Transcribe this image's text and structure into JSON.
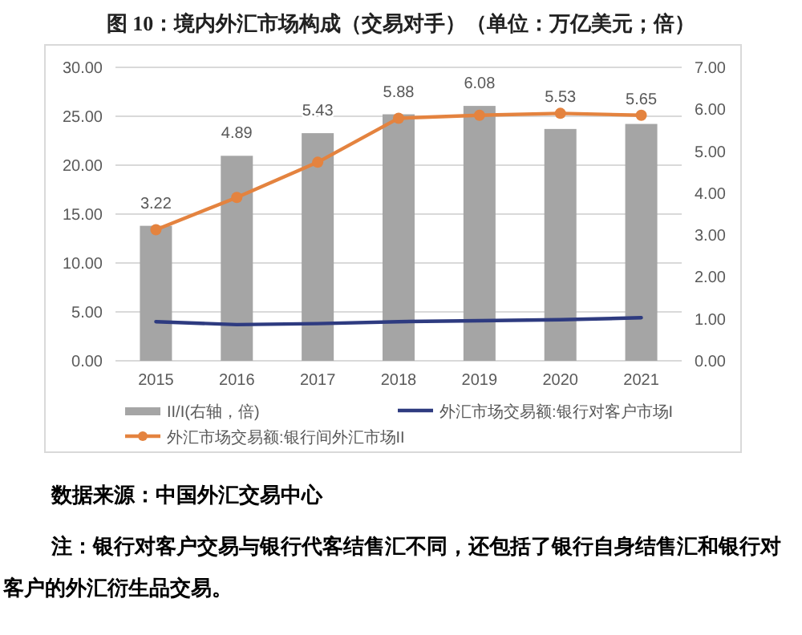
{
  "chart_data": {
    "type": "bar",
    "title": "图 10：境内外汇市场构成（交易对手）（单位：万亿美元；倍）",
    "categories": [
      "2015",
      "2016",
      "2017",
      "2018",
      "2019",
      "2020",
      "2021"
    ],
    "series": [
      {
        "name": "II/I(右轴，倍)",
        "axis": "y2",
        "color": "#a5a5a5",
        "values": [
          3.22,
          4.89,
          5.43,
          5.88,
          6.08,
          5.53,
          5.65
        ],
        "value_labels": [
          "3.22",
          "4.89",
          "5.43",
          "5.88",
          "6.08",
          "5.53",
          "5.65"
        ]
      },
      {
        "name": "外汇市场交易额:银行对客户市场I",
        "type": "line",
        "color": "#2e3b80",
        "marker": "none",
        "values": [
          4.0,
          3.7,
          3.8,
          4.0,
          4.1,
          4.2,
          4.4
        ]
      },
      {
        "name": "外汇市场交易额:银行间外汇市场II",
        "type": "line",
        "color": "#e4833f",
        "marker": "circle",
        "values": [
          13.4,
          16.7,
          20.3,
          24.8,
          25.1,
          25.3,
          25.1
        ]
      }
    ],
    "ylim": [
      0,
      30
    ],
    "yticks": [
      {
        "value": 0,
        "label": "0.00"
      },
      {
        "value": 5,
        "label": "5.00"
      },
      {
        "value": 10,
        "label": "10.00"
      },
      {
        "value": 15,
        "label": "15.00"
      },
      {
        "value": 20,
        "label": "20.00"
      },
      {
        "value": 25,
        "label": "25.00"
      },
      {
        "value": 30,
        "label": "30.00"
      }
    ],
    "y2lim": [
      0,
      7
    ],
    "y2ticks": [
      {
        "value": 0,
        "label": "0.00"
      },
      {
        "value": 1,
        "label": "1.00"
      },
      {
        "value": 2,
        "label": "2.00"
      },
      {
        "value": 3,
        "label": "3.00"
      },
      {
        "value": 4,
        "label": "4.00"
      },
      {
        "value": 5,
        "label": "5.00"
      },
      {
        "value": 6,
        "label": "6.00"
      },
      {
        "value": 7,
        "label": "7.00"
      }
    ],
    "grid": "y",
    "legend": "bottom",
    "annotations": [
      "数据来源：中国外汇交易中心",
      "注：银行对客户交易与银行代客结售汇不同，还包括了银行自身结售汇和银行对客户的外汇衍生品交易。"
    ]
  }
}
